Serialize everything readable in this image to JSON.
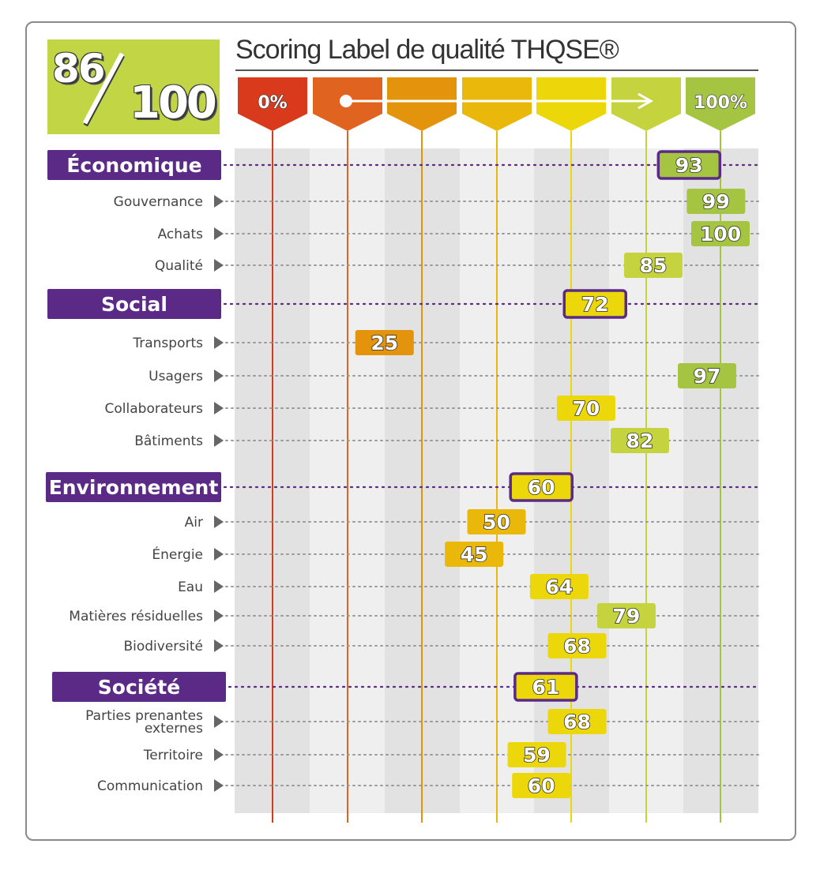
{
  "score": {
    "value": "86",
    "max": "100"
  },
  "title": "Scoring Label de qualité THQSE®",
  "scale_labels": {
    "start": "0%",
    "end": "100%"
  },
  "colors": {
    "purple": "#5b2a86",
    "scale": [
      "#d93a1c",
      "#e06320",
      "#e4930c",
      "#e9b80a",
      "#ecd70a",
      "#c4d33e",
      "#a5c542"
    ]
  },
  "chart_data": {
    "type": "dot-plot",
    "title": "Scoring Label de qualité THQSE®",
    "xlim": [
      0,
      100
    ],
    "x_ticks": [
      "0%",
      "100%"
    ],
    "categories": [
      {
        "name": "Économique",
        "value": 93,
        "is_group": true
      },
      {
        "name": "Gouvernance",
        "value": 99,
        "is_group": false
      },
      {
        "name": "Achats",
        "value": 100,
        "is_group": false
      },
      {
        "name": "Qualité",
        "value": 85,
        "is_group": false
      },
      {
        "name": "Social",
        "value": 72,
        "is_group": true
      },
      {
        "name": "Transports",
        "value": 25,
        "is_group": false
      },
      {
        "name": "Usagers",
        "value": 97,
        "is_group": false
      },
      {
        "name": "Collaborateurs",
        "value": 70,
        "is_group": false
      },
      {
        "name": "Bâtiments",
        "value": 82,
        "is_group": false
      },
      {
        "name": "Environnement",
        "value": 60,
        "is_group": true
      },
      {
        "name": "Air",
        "value": 50,
        "is_group": false
      },
      {
        "name": "Énergie",
        "value": 45,
        "is_group": false
      },
      {
        "name": "Eau",
        "value": 64,
        "is_group": false
      },
      {
        "name": "Matières résiduelles",
        "value": 79,
        "is_group": false
      },
      {
        "name": "Biodiversité",
        "value": 68,
        "is_group": false
      },
      {
        "name": "Société",
        "value": 61,
        "is_group": true
      },
      {
        "name": "Parties prenantes externes",
        "value": 68,
        "is_group": false
      },
      {
        "name": "Territoire",
        "value": 59,
        "is_group": false
      },
      {
        "name": "Communication",
        "value": 60,
        "is_group": false
      }
    ]
  }
}
